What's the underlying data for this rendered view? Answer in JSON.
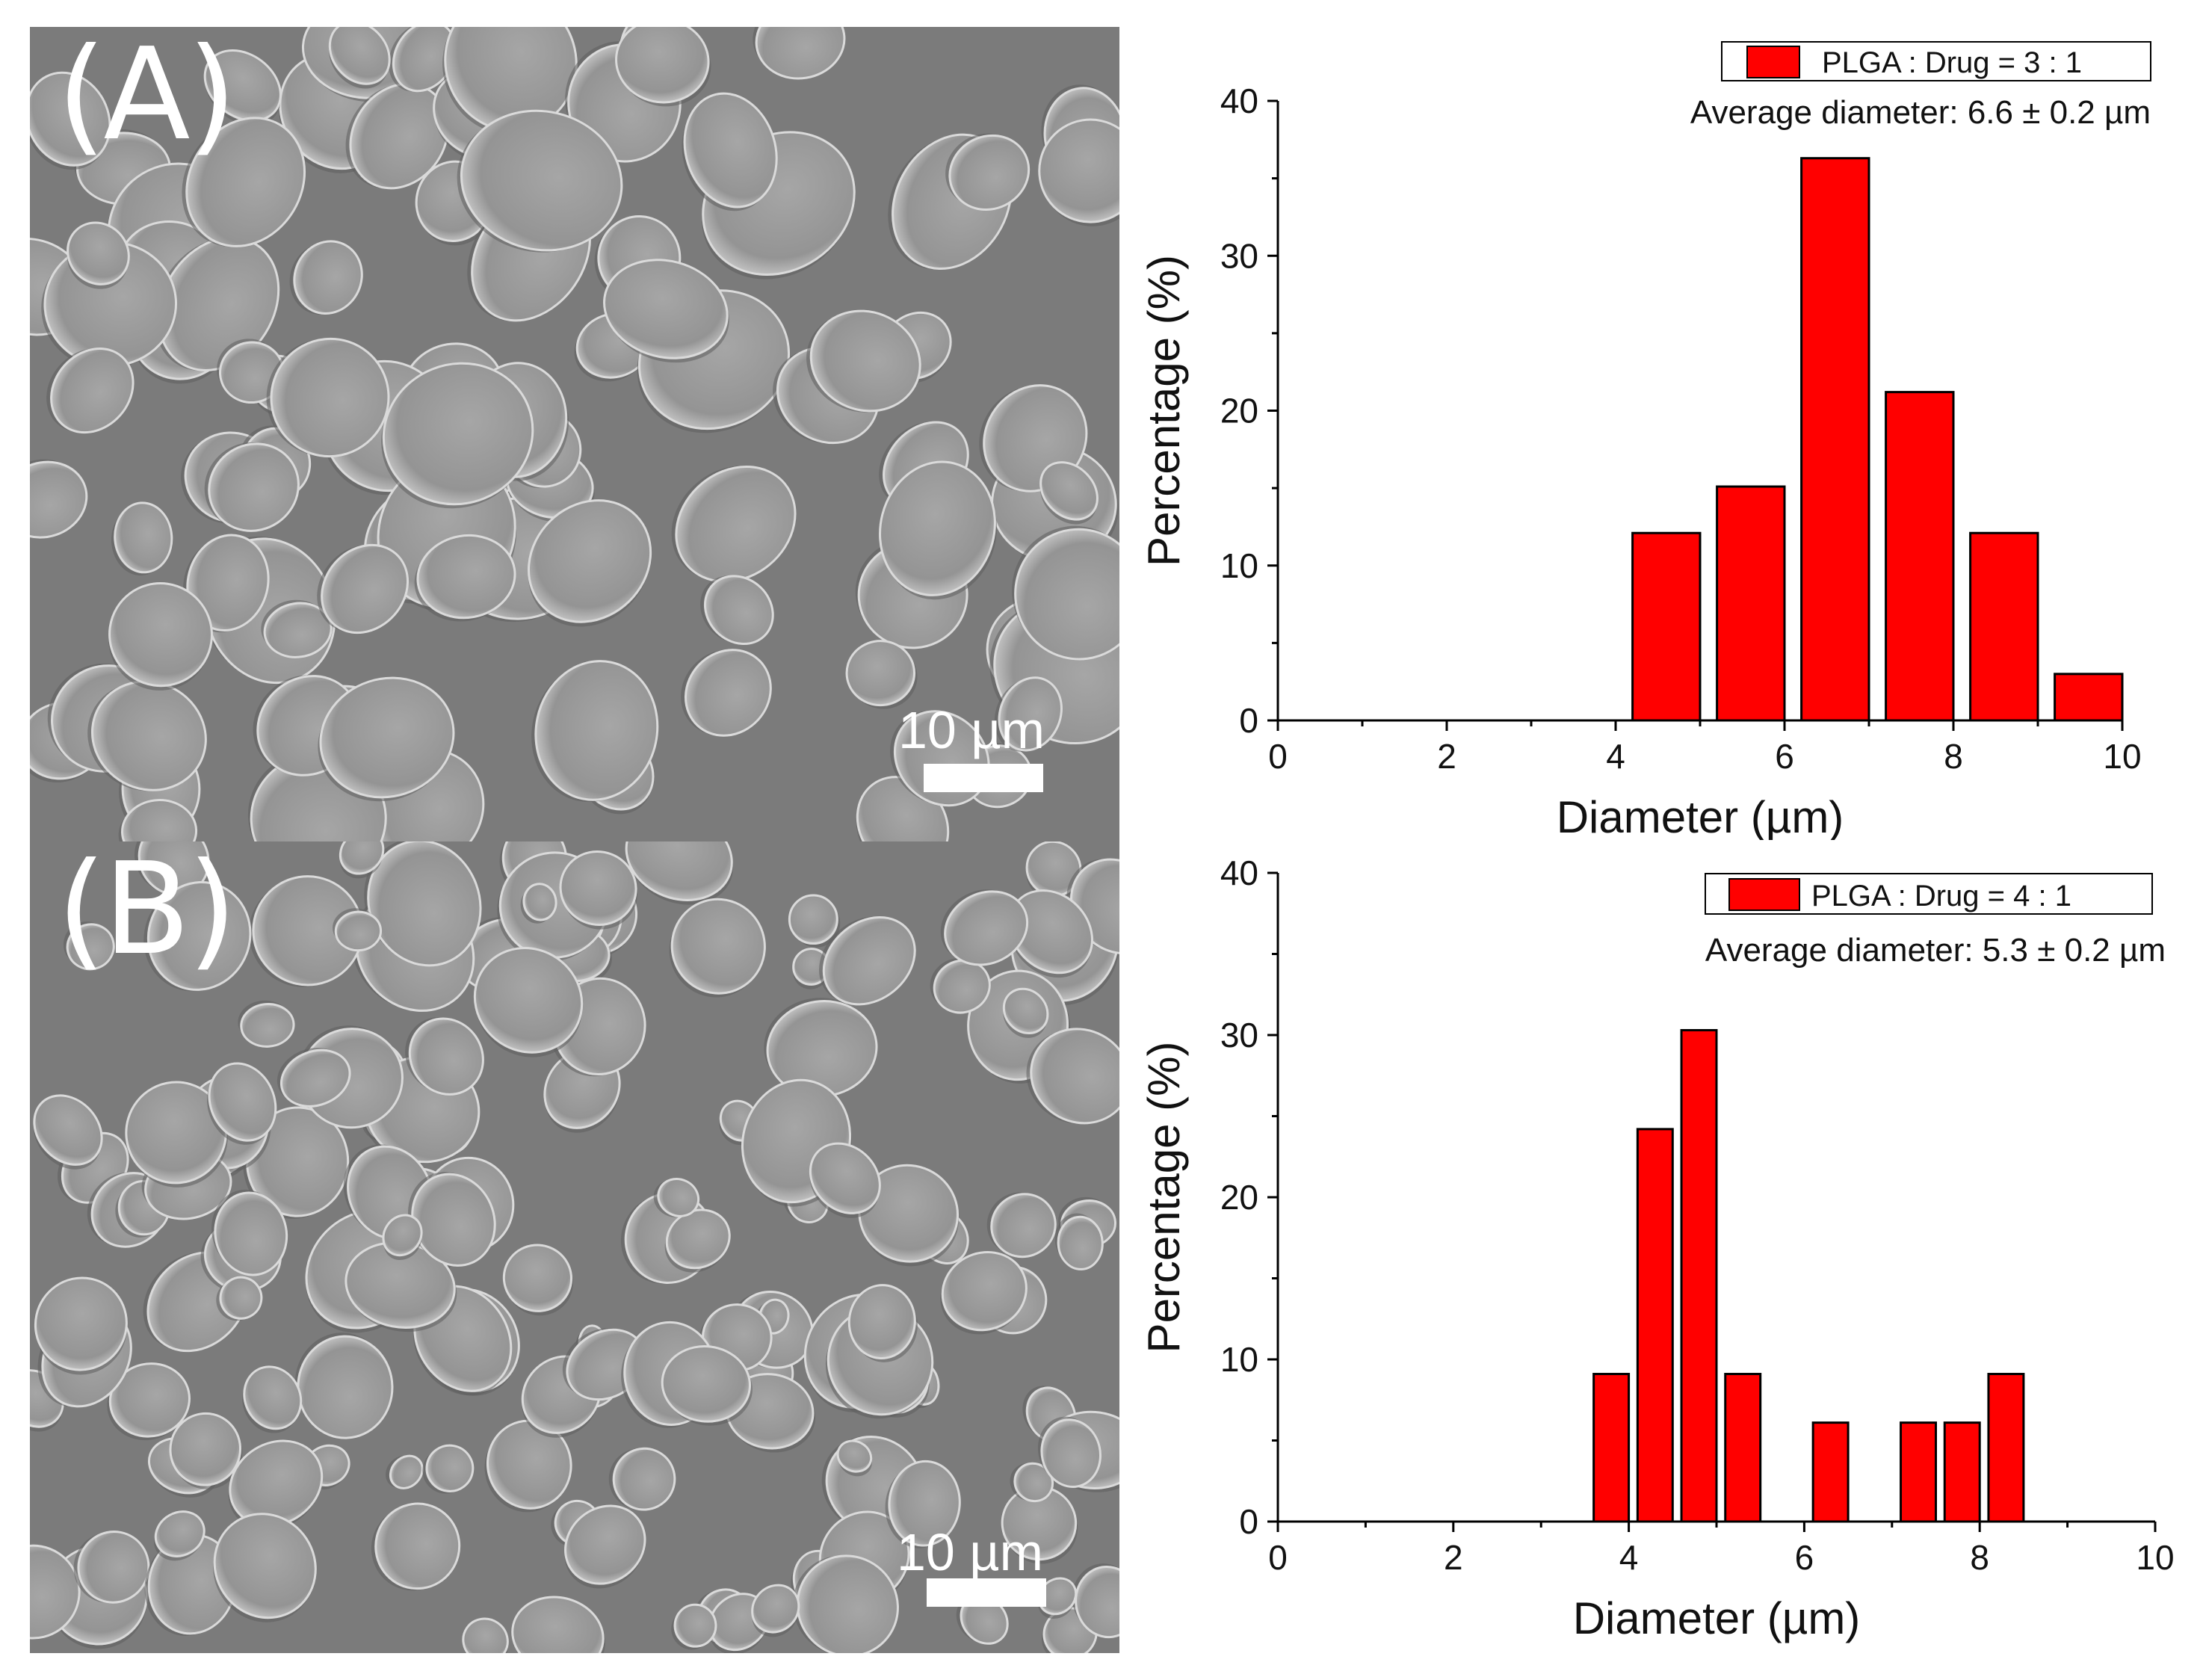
{
  "panels": [
    {
      "label": "(A)",
      "scale_bar_text": "10 µm"
    },
    {
      "label": "(B)",
      "scale_bar_text": "10 µm"
    }
  ],
  "chart_data": [
    {
      "type": "bar",
      "legend": "PLGA : Drug = 3 : 1",
      "annotation": "Average diameter: 6.6 ± 0.2 µm",
      "xlabel": "Diameter (µm)",
      "ylabel": "Percentage (%)",
      "xlim": [
        0,
        10
      ],
      "ylim": [
        0,
        40
      ],
      "xticks": [
        0,
        2,
        4,
        6,
        8,
        10
      ],
      "yticks": [
        0,
        10,
        20,
        30,
        40
      ],
      "bar_width": 0.8,
      "bars": [
        {
          "x": 4.6,
          "y": 12.1
        },
        {
          "x": 5.6,
          "y": 15.1
        },
        {
          "x": 6.6,
          "y": 36.3
        },
        {
          "x": 7.6,
          "y": 21.2
        },
        {
          "x": 8.6,
          "y": 12.1
        },
        {
          "x": 9.6,
          "y": 3.0
        }
      ],
      "color": "#ff0000"
    },
    {
      "type": "bar",
      "legend": "PLGA : Drug = 4 : 1",
      "annotation": "Average diameter: 5.3 ± 0.2 µm",
      "xlabel": "Diameter (µm)",
      "ylabel": "Percentage (%)",
      "xlim": [
        0,
        10
      ],
      "ylim": [
        0,
        40
      ],
      "xticks": [
        0,
        2,
        4,
        6,
        8,
        10
      ],
      "yticks": [
        0,
        10,
        20,
        30,
        40
      ],
      "bar_width": 0.4,
      "bars": [
        {
          "x": 3.8,
          "y": 9.1
        },
        {
          "x": 4.3,
          "y": 24.2
        },
        {
          "x": 4.8,
          "y": 30.3
        },
        {
          "x": 5.3,
          "y": 9.1
        },
        {
          "x": 6.3,
          "y": 6.1
        },
        {
          "x": 7.3,
          "y": 6.1
        },
        {
          "x": 7.8,
          "y": 6.1
        },
        {
          "x": 8.3,
          "y": 9.1
        }
      ],
      "color": "#ff0000"
    }
  ]
}
